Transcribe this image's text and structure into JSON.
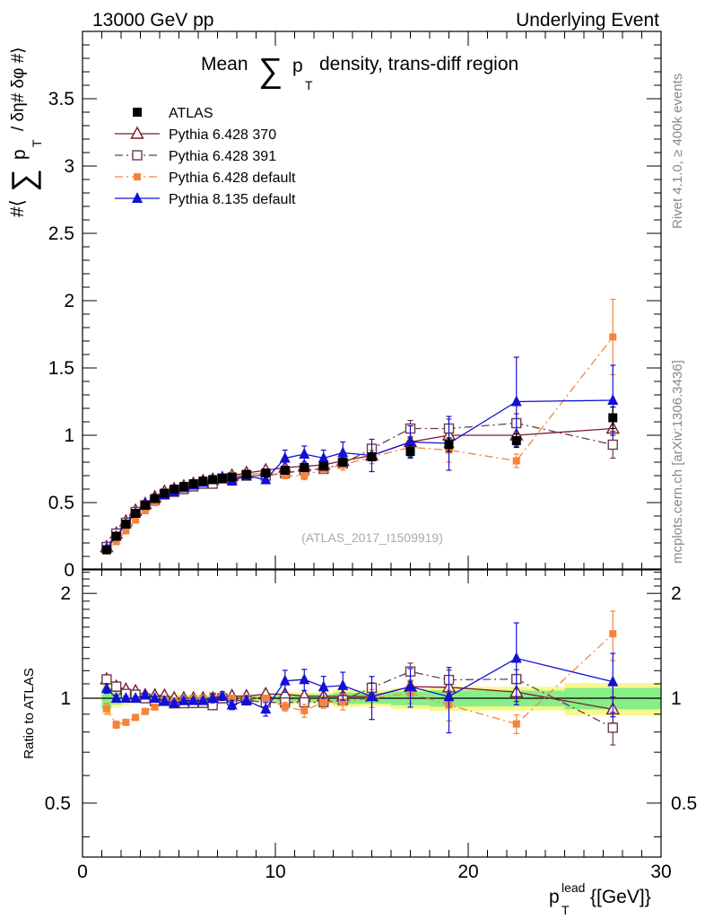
{
  "header": {
    "left": "13000 GeV pp",
    "right": "Underlying Event"
  },
  "side_labels": {
    "rivet": "Rivet 4.1.0, ≥ 400k events",
    "mcplots": "mcplots.cern.ch [arXiv:1306.3436]"
  },
  "chart_data": {
    "type": "scatter",
    "title": "Mean ∑ p_T density, trans-diff region",
    "title_parts": {
      "pre": "Mean",
      "sigma": "∑",
      "p": "p",
      "sub": "T",
      "post": "density, trans-diff region"
    },
    "ylabel_parts": {
      "open": "#⟨",
      "sigma": "∑",
      "p": "p",
      "sub": "T",
      "rest": "/ δη# δφ #⟩"
    },
    "xlabel_parts": {
      "p": "p",
      "sub": "T",
      "sup": "lead",
      "rest": "{[GeV]}"
    },
    "ratio_ylabel": "Ratio to ATLAS",
    "watermark": "(ATLAS_2017_I1509919)",
    "xlim": [
      0,
      30
    ],
    "ylim": [
      0,
      4.0
    ],
    "ratio_ylim": [
      0.35,
      2.35
    ],
    "x_ticks": [
      0,
      10,
      20,
      30
    ],
    "x_tick_labels": [
      "0",
      "10",
      "20",
      "30"
    ],
    "y_ticks": [
      0,
      0.5,
      1,
      1.5,
      2,
      2.5,
      3,
      3.5
    ],
    "y_tick_labels": [
      "0",
      "0.5",
      "1",
      "1.5",
      "2",
      "2.5",
      "3",
      "3.5"
    ],
    "ratio_ticks": [
      0.5,
      1,
      2
    ],
    "ratio_tick_labels": [
      "0.5",
      "1",
      "2"
    ],
    "x": [
      1.25,
      1.75,
      2.25,
      2.75,
      3.25,
      3.75,
      4.25,
      4.75,
      5.25,
      5.75,
      6.25,
      6.75,
      7.25,
      7.75,
      8.5,
      9.5,
      10.5,
      11.5,
      12.5,
      13.5,
      15,
      17,
      19,
      22.5,
      27.5
    ],
    "series": [
      {
        "name": "ATLAS",
        "color": "#000000",
        "marker": "square-filled",
        "line": "none",
        "values": [
          0.15,
          0.25,
          0.34,
          0.42,
          0.48,
          0.53,
          0.57,
          0.6,
          0.62,
          0.64,
          0.66,
          0.67,
          0.68,
          0.69,
          0.71,
          0.72,
          0.74,
          0.76,
          0.77,
          0.8,
          0.84,
          0.88,
          0.93,
          0.96,
          1.13
        ],
        "errors": [
          0.01,
          0.01,
          0.01,
          0.01,
          0.01,
          0.01,
          0.01,
          0.01,
          0.01,
          0.01,
          0.01,
          0.01,
          0.01,
          0.01,
          0.01,
          0.01,
          0.02,
          0.02,
          0.02,
          0.03,
          0.03,
          0.04,
          0.05,
          0.05,
          0.08
        ]
      },
      {
        "name": "Pythia 6.428 370",
        "color": "#7a1a2e",
        "marker": "triangle-open",
        "line": "solid",
        "values": [
          0.17,
          0.27,
          0.36,
          0.44,
          0.49,
          0.54,
          0.58,
          0.6,
          0.62,
          0.64,
          0.66,
          0.67,
          0.68,
          0.7,
          0.72,
          0.74,
          0.76,
          0.77,
          0.78,
          0.81,
          0.85,
          0.95,
          1.0,
          1.0,
          1.05
        ],
        "errors": [
          0.005,
          0.005,
          0.005,
          0.005,
          0.005,
          0.005,
          0.005,
          0.005,
          0.005,
          0.005,
          0.005,
          0.005,
          0.005,
          0.005,
          0.005,
          0.01,
          0.01,
          0.01,
          0.01,
          0.02,
          0.02,
          0.03,
          0.04,
          0.06,
          0.09
        ]
      },
      {
        "name": "Pythia 6.428 391",
        "color": "#6b3b52",
        "marker": "square-open",
        "line": "dashdot",
        "values": [
          0.17,
          0.27,
          0.35,
          0.43,
          0.48,
          0.52,
          0.56,
          0.58,
          0.6,
          0.62,
          0.64,
          0.64,
          0.68,
          0.68,
          0.7,
          0.7,
          0.72,
          0.74,
          0.75,
          0.79,
          0.9,
          1.05,
          1.05,
          1.09,
          0.93
        ],
        "errors": [
          0.005,
          0.005,
          0.005,
          0.005,
          0.005,
          0.005,
          0.005,
          0.005,
          0.005,
          0.005,
          0.005,
          0.005,
          0.005,
          0.005,
          0.01,
          0.01,
          0.01,
          0.02,
          0.02,
          0.02,
          0.03,
          0.06,
          0.07,
          0.07,
          0.1
        ]
      },
      {
        "name": "Pythia 6.428 default",
        "color": "#f5843a",
        "marker": "square-filled-small",
        "line": "dashdot",
        "values": [
          0.14,
          0.21,
          0.29,
          0.37,
          0.44,
          0.5,
          0.56,
          0.59,
          0.61,
          0.64,
          0.66,
          0.68,
          0.69,
          0.69,
          0.71,
          0.72,
          0.7,
          0.7,
          0.75,
          0.78,
          0.84,
          0.91,
          0.89,
          0.81,
          1.73
        ],
        "errors": [
          0.005,
          0.005,
          0.005,
          0.005,
          0.005,
          0.005,
          0.005,
          0.005,
          0.005,
          0.005,
          0.005,
          0.005,
          0.005,
          0.005,
          0.01,
          0.01,
          0.02,
          0.03,
          0.03,
          0.04,
          0.05,
          0.06,
          0.09,
          0.05,
          0.28
        ]
      },
      {
        "name": "Pythia 8.135 default",
        "color": "#1010d8",
        "marker": "triangle-filled",
        "line": "solid",
        "values": [
          0.16,
          0.25,
          0.34,
          0.42,
          0.49,
          0.53,
          0.56,
          0.58,
          0.61,
          0.63,
          0.65,
          0.67,
          0.69,
          0.66,
          0.7,
          0.67,
          0.83,
          0.86,
          0.83,
          0.87,
          0.85,
          0.95,
          0.94,
          1.25,
          1.26
        ],
        "errors": [
          0.005,
          0.005,
          0.005,
          0.005,
          0.005,
          0.005,
          0.005,
          0.01,
          0.01,
          0.01,
          0.01,
          0.02,
          0.02,
          0.02,
          0.02,
          0.03,
          0.06,
          0.06,
          0.06,
          0.08,
          0.12,
          0.12,
          0.2,
          0.33,
          0.26
        ]
      }
    ]
  }
}
